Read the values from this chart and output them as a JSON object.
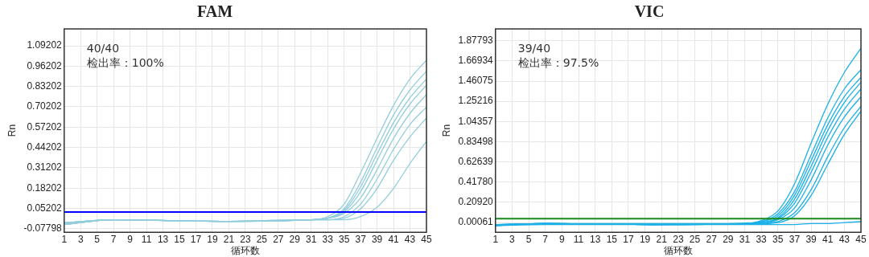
{
  "chart_data": [
    {
      "type": "line",
      "title": "FAM",
      "xlabel": "循环数",
      "ylabel": "Rn",
      "annotations": [
        "40/40",
        "检出率：100%"
      ],
      "grid": true,
      "legend": false,
      "marker": "none",
      "line_style": "solid",
      "x": [
        1,
        7,
        20,
        31,
        33,
        35,
        37,
        39,
        41,
        43,
        45
      ],
      "xlim": [
        1,
        45
      ],
      "xticks": [
        1,
        3,
        5,
        7,
        9,
        11,
        13,
        15,
        17,
        19,
        21,
        23,
        25,
        27,
        29,
        31,
        33,
        35,
        37,
        39,
        41,
        43,
        45
      ],
      "ylim": [
        -0.1,
        1.2
      ],
      "yticks": [
        -0.07798,
        0.05202,
        0.18202,
        0.31202,
        0.44202,
        0.57202,
        0.70202,
        0.83202,
        0.96202,
        1.09202
      ],
      "ref_lines": [
        {
          "axis": "y",
          "value": 0.03,
          "color": "#0000ff"
        }
      ],
      "series": [
        {
          "color": "#92cddc",
          "values": [
            -0.05,
            -0.02,
            -0.03,
            -0.02,
            0.0,
            0.08,
            0.28,
            0.5,
            0.71,
            0.88,
            1.0
          ]
        },
        {
          "color": "#92cddc",
          "values": [
            -0.04,
            -0.02,
            -0.03,
            -0.02,
            -0.01,
            0.05,
            0.22,
            0.44,
            0.65,
            0.81,
            0.93
          ]
        },
        {
          "color": "#92cddc",
          "values": [
            -0.05,
            -0.02,
            -0.03,
            -0.02,
            -0.01,
            0.04,
            0.19,
            0.4,
            0.6,
            0.76,
            0.88
          ]
        },
        {
          "color": "#92cddc",
          "values": [
            -0.04,
            -0.02,
            -0.03,
            -0.02,
            -0.01,
            0.03,
            0.16,
            0.36,
            0.56,
            0.72,
            0.84
          ]
        },
        {
          "color": "#92cddc",
          "values": [
            -0.05,
            -0.02,
            -0.03,
            -0.02,
            -0.01,
            0.02,
            0.12,
            0.3,
            0.5,
            0.66,
            0.78
          ]
        },
        {
          "color": "#92cddc",
          "values": [
            -0.04,
            -0.02,
            -0.03,
            -0.02,
            -0.02,
            0.0,
            0.08,
            0.24,
            0.43,
            0.59,
            0.7
          ]
        },
        {
          "color": "#92cddc",
          "values": [
            -0.05,
            -0.02,
            -0.03,
            -0.02,
            -0.02,
            -0.01,
            0.05,
            0.18,
            0.36,
            0.51,
            0.63
          ]
        },
        {
          "color": "#92cddc",
          "values": [
            -0.04,
            -0.02,
            -0.03,
            -0.02,
            -0.02,
            -0.02,
            0.0,
            0.06,
            0.18,
            0.34,
            0.48
          ]
        }
      ]
    },
    {
      "type": "line",
      "title": "VIC",
      "xlabel": "循环数",
      "ylabel": "Rn",
      "annotations": [
        "39/40",
        "检出率：97.5%"
      ],
      "grid": true,
      "legend": false,
      "marker": "none",
      "line_style": "solid",
      "x": [
        1,
        7,
        20,
        31,
        33,
        35,
        37,
        39,
        41,
        43,
        45
      ],
      "xlim": [
        1,
        45
      ],
      "xticks": [
        1,
        3,
        5,
        7,
        9,
        11,
        13,
        15,
        17,
        19,
        21,
        23,
        25,
        27,
        29,
        31,
        33,
        35,
        37,
        39,
        41,
        43,
        45
      ],
      "ylim": [
        -0.1,
        2.0
      ],
      "yticks": [
        0.00061,
        {
          "value": 0.2092,
          "label": "0.20920"
        },
        {
          "value": 0.4178,
          "label": "0.41780"
        },
        0.62639,
        0.83498,
        1.04357,
        1.25216,
        1.46075,
        1.66934,
        1.87793
      ],
      "ref_lines": [
        {
          "axis": "y",
          "value": 0.04,
          "color": "#1a8a1a"
        }
      ],
      "series": [
        {
          "color": "#1ab0e8",
          "values": [
            -0.02,
            -0.01,
            -0.01,
            -0.01,
            0.02,
            0.12,
            0.4,
            0.82,
            1.22,
            1.55,
            1.8
          ]
        },
        {
          "color": "#1ab0e8",
          "values": [
            -0.03,
            -0.01,
            -0.02,
            -0.01,
            0.01,
            0.09,
            0.32,
            0.7,
            1.08,
            1.38,
            1.58
          ]
        },
        {
          "color": "#1ab0e8",
          "values": [
            -0.02,
            -0.01,
            -0.02,
            -0.01,
            0.01,
            0.07,
            0.28,
            0.64,
            1.01,
            1.3,
            1.5
          ]
        },
        {
          "color": "#1ab0e8",
          "values": [
            -0.03,
            -0.01,
            -0.02,
            -0.01,
            0.0,
            0.05,
            0.24,
            0.58,
            0.95,
            1.24,
            1.45
          ]
        },
        {
          "color": "#1ab0e8",
          "values": [
            -0.02,
            -0.01,
            -0.02,
            -0.01,
            0.0,
            0.04,
            0.2,
            0.52,
            0.88,
            1.17,
            1.38
          ]
        },
        {
          "color": "#1ab0e8",
          "values": [
            -0.03,
            -0.01,
            -0.02,
            -0.01,
            -0.01,
            0.03,
            0.15,
            0.44,
            0.8,
            1.09,
            1.3
          ]
        },
        {
          "color": "#1ab0e8",
          "values": [
            -0.02,
            -0.01,
            -0.02,
            -0.01,
            -0.01,
            0.01,
            0.1,
            0.34,
            0.68,
            0.98,
            1.2
          ]
        },
        {
          "color": "#1ab0e8",
          "values": [
            -0.03,
            -0.01,
            -0.02,
            -0.01,
            -0.01,
            0.0,
            0.07,
            0.28,
            0.6,
            0.91,
            1.15
          ]
        },
        {
          "color": "#1ab0e8",
          "values": [
            -0.03,
            -0.02,
            -0.02,
            -0.02,
            -0.02,
            -0.02,
            -0.02,
            -0.01,
            -0.01,
            0.0,
            0.01
          ]
        }
      ]
    }
  ]
}
